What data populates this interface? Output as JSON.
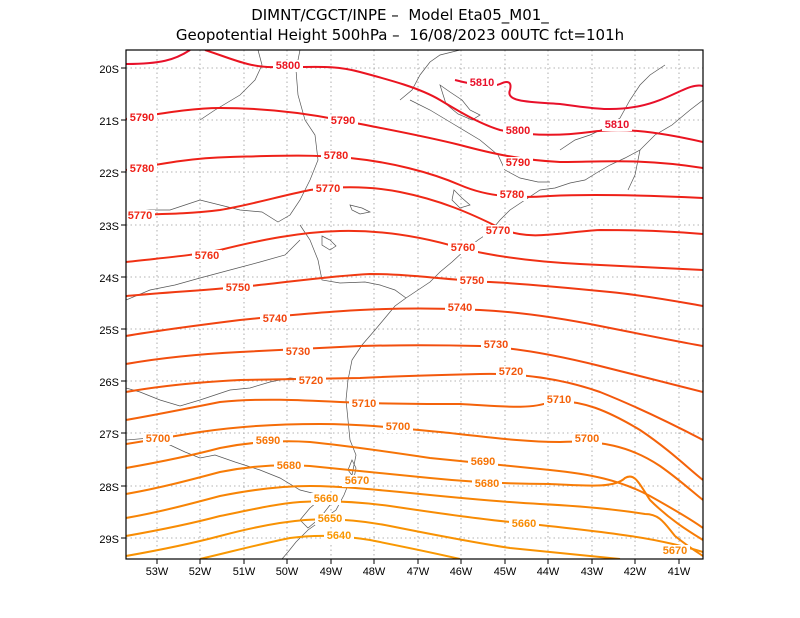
{
  "title_line1": "DIMNT/CGCT/INPE –  Model Eta05_M01_",
  "title_line2": "Geopotential Height 500hPa –  16/08/2023 00UTC fct=101h",
  "lat_labels": [
    "20S",
    "21S",
    "22S",
    "23S",
    "24S",
    "25S",
    "26S",
    "27S",
    "28S",
    "29S"
  ],
  "lon_labels": [
    "53W",
    "52W",
    "51W",
    "50W",
    "49W",
    "48W",
    "47W",
    "46W",
    "45W",
    "44W",
    "43W",
    "42W",
    "41W"
  ],
  "contour_labels": [
    {
      "id": "5810a",
      "text": "5810",
      "color": "#e8102a"
    },
    {
      "id": "5810b",
      "text": "5810",
      "color": "#e8102a"
    },
    {
      "id": "5800a",
      "text": "5800",
      "color": "#ea1420"
    },
    {
      "id": "5800b",
      "text": "5800",
      "color": "#ea1420"
    },
    {
      "id": "5790a",
      "text": "5790",
      "color": "#ec1a1a"
    },
    {
      "id": "5790b",
      "text": "5790",
      "color": "#ec1a1a"
    },
    {
      "id": "5790c",
      "text": "5790",
      "color": "#ec1a1a"
    },
    {
      "id": "5780a",
      "text": "5780",
      "color": "#ee2018"
    },
    {
      "id": "5780b",
      "text": "5780",
      "color": "#ee2018"
    },
    {
      "id": "5780c",
      "text": "5780",
      "color": "#ee2018"
    },
    {
      "id": "5770a",
      "text": "5770",
      "color": "#ef2816"
    },
    {
      "id": "5770b",
      "text": "5770",
      "color": "#ef2816"
    },
    {
      "id": "5770c",
      "text": "5770",
      "color": "#ef2816"
    },
    {
      "id": "5760a",
      "text": "5760",
      "color": "#f03014"
    },
    {
      "id": "5760b",
      "text": "5760",
      "color": "#f03014"
    },
    {
      "id": "5750a",
      "text": "5750",
      "color": "#f03a12"
    },
    {
      "id": "5750b",
      "text": "5750",
      "color": "#f03a12"
    },
    {
      "id": "5740a",
      "text": "5740",
      "color": "#f14410"
    },
    {
      "id": "5740b",
      "text": "5740",
      "color": "#f14410"
    },
    {
      "id": "5730a",
      "text": "5730",
      "color": "#f24e0e"
    },
    {
      "id": "5730b",
      "text": "5730",
      "color": "#f24e0e"
    },
    {
      "id": "5720a",
      "text": "5720",
      "color": "#f3580c"
    },
    {
      "id": "5720b",
      "text": "5720",
      "color": "#f3580c"
    },
    {
      "id": "5710a",
      "text": "5710",
      "color": "#f4620a"
    },
    {
      "id": "5710b",
      "text": "5710",
      "color": "#f4620a"
    },
    {
      "id": "5700a",
      "text": "5700",
      "color": "#f56c08"
    },
    {
      "id": "5700b",
      "text": "5700",
      "color": "#f56c08"
    },
    {
      "id": "5700c",
      "text": "5700",
      "color": "#f56c08"
    },
    {
      "id": "5690a",
      "text": "5690",
      "color": "#f67407"
    },
    {
      "id": "5690b",
      "text": "5690",
      "color": "#f67407"
    },
    {
      "id": "5680a",
      "text": "5680",
      "color": "#f77c06"
    },
    {
      "id": "5680b",
      "text": "5680",
      "color": "#f77c06"
    },
    {
      "id": "5670a",
      "text": "5670",
      "color": "#f78405"
    },
    {
      "id": "5670b",
      "text": "5670",
      "color": "#f78405"
    },
    {
      "id": "5660a",
      "text": "5660",
      "color": "#f88c04"
    },
    {
      "id": "5660b",
      "text": "5660",
      "color": "#f88c04"
    },
    {
      "id": "5650a",
      "text": "5650",
      "color": "#f89203"
    },
    {
      "id": "5640a",
      "text": "5640",
      "color": "#f99802"
    }
  ]
}
